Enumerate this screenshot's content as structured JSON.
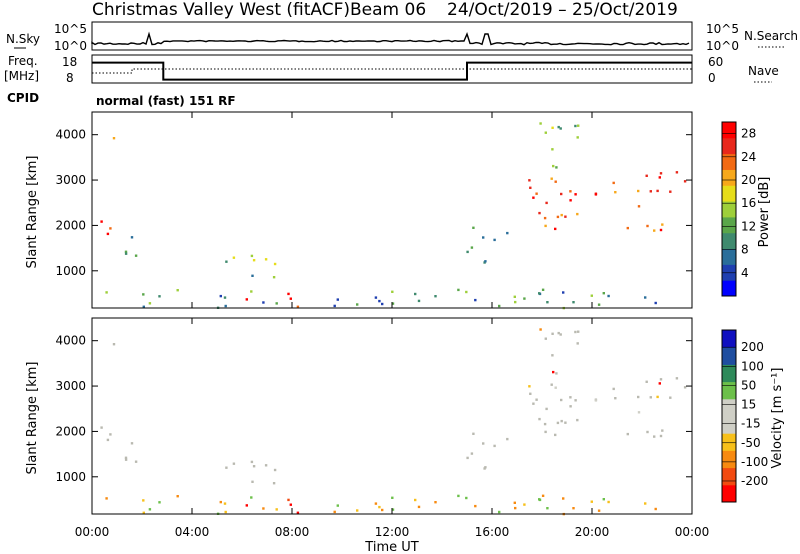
{
  "header": {
    "title": "Christmas Valley West (fitACF)",
    "beam": "Beam 06",
    "date_range": "24/Oct/2019 – 25/Oct/2019"
  },
  "colors": {
    "power_scale": [
      "#0000ff",
      "#1f3fb0",
      "#2a6e9a",
      "#3f8a6e",
      "#5aa64a",
      "#9ecf3a",
      "#e6dd1a",
      "#f7a81b",
      "#f26a13",
      "#e8281c",
      "#ff0000"
    ],
    "velocity_scale": [
      "#ff0000",
      "#f24a10",
      "#f78a10",
      "#f7c01a",
      "#cfcfc6",
      "#cfcfc6",
      "#6cc04a",
      "#2e8a5a",
      "#1f4ea0",
      "#1010c0"
    ],
    "ground_scatter": "#b9b9b0"
  },
  "chart_data": [
    {
      "type": "line",
      "panel": "noise",
      "left_label": "N.Sky",
      "right_label": "N.Search",
      "left_ticks": [
        "10^5",
        "10^0"
      ],
      "right_ticks": [
        "10^5",
        "10^0"
      ]
    },
    {
      "type": "line",
      "panel": "frequency",
      "left_label_line1": "Freq.",
      "left_label_line2": "[MHz]",
      "right_label": "Nave",
      "left_ticks": [
        "18",
        "8"
      ],
      "right_ticks": [
        "60",
        "0"
      ],
      "freq_steps": [
        {
          "from": 0.0,
          "to": 2.85,
          "value": 15.3
        },
        {
          "from": 2.85,
          "to": 15.0,
          "value": 9.2
        },
        {
          "from": 15.0,
          "to": 24.0,
          "value": 15.3
        }
      ],
      "ylim": [
        8,
        18
      ]
    },
    {
      "type": "heatmap",
      "panel": "power",
      "cpid_label": "CPID",
      "mode_label": "normal (fast) 151 RF",
      "ylabel": "Slant Range [km]",
      "yticks": [
        1000,
        2000,
        3000,
        4000
      ],
      "ylim": [
        180,
        4500
      ],
      "xlim": [
        0,
        24
      ],
      "colorbar_label": "Power [dB]",
      "colorbar_ticks": [
        4,
        8,
        12,
        16,
        20,
        24,
        28
      ],
      "colorbar_range": [
        0,
        30
      ]
    },
    {
      "type": "heatmap",
      "panel": "velocity",
      "ylabel": "Slant Range [km]",
      "yticks": [
        1000,
        2000,
        3000,
        4000
      ],
      "ylim": [
        180,
        4500
      ],
      "xlim": [
        0,
        24
      ],
      "xticks": [
        "00:00",
        "04:00",
        "08:00",
        "12:00",
        "16:00",
        "20:00",
        "00:00"
      ],
      "xlabel": "Time UT",
      "colorbar_label": "Velocity [m s⁻¹]",
      "colorbar_ticks": [
        "200",
        "100",
        "50",
        "15",
        "-15",
        "-50",
        "-100",
        "-200"
      ]
    }
  ]
}
